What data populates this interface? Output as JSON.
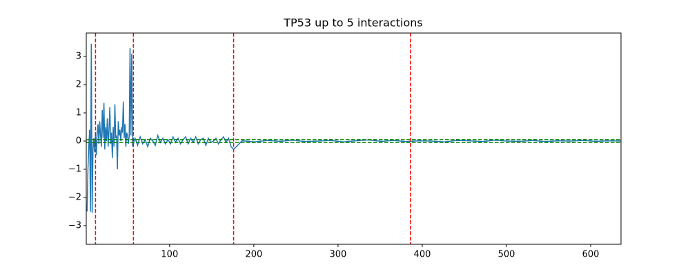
{
  "chart_data": {
    "type": "line",
    "title": "TP53 up to 5 interactions",
    "x": [
      2,
      3,
      4,
      5,
      6,
      7,
      8,
      9,
      10,
      11,
      12,
      13,
      14,
      15,
      16,
      17,
      18,
      19,
      20,
      21,
      22,
      23,
      24,
      25,
      26,
      27,
      28,
      29,
      30,
      31,
      32,
      33,
      34,
      35,
      36,
      37,
      38,
      39,
      40,
      41,
      42,
      43,
      44,
      45,
      46,
      47,
      48,
      49,
      50,
      51,
      52,
      53,
      54,
      55,
      56,
      59,
      62,
      65,
      68,
      71,
      74,
      77,
      80,
      83,
      86,
      89,
      92,
      95,
      98,
      101,
      104,
      107,
      110,
      113,
      116,
      119,
      122,
      125,
      128,
      131,
      134,
      137,
      140,
      143,
      146,
      149,
      152,
      155,
      158,
      161,
      164,
      167,
      170,
      173,
      176,
      186,
      201,
      216,
      231,
      246,
      261,
      276,
      291,
      306,
      321,
      336,
      351,
      366,
      381,
      396,
      411,
      426,
      441,
      456,
      471,
      486,
      501,
      516,
      531,
      546,
      561,
      576,
      591,
      606,
      621,
      636
    ],
    "series": [
      {
        "color": "#1f77b4",
        "values": [
          -2.5,
          -1.0,
          -0.2,
          0.4,
          -2.5,
          3.45,
          -2.55,
          -0.3,
          0.1,
          -0.4,
          0.3,
          -0.5,
          0.25,
          0.6,
          -0.1,
          0.7,
          0.2,
          -0.2,
          1.1,
          0.1,
          1.35,
          -0.3,
          0.5,
          0.0,
          0.8,
          -0.2,
          0.4,
          1.2,
          -0.1,
          0.3,
          -0.6,
          0.5,
          -0.2,
          1.3,
          0.1,
          0.2,
          -1.0,
          0.7,
          0.2,
          0.4,
          0.0,
          0.5,
          0.3,
          1.4,
          0.1,
          0.6,
          -0.2,
          0.3,
          0.2,
          -0.1,
          0.15,
          3.3,
          0.2,
          3.1,
          -0.2,
          0.1,
          -0.15,
          0.15,
          -0.1,
          0.05,
          -0.2,
          0.1,
          0.0,
          -0.15,
          0.2,
          -0.05,
          0.1,
          -0.1,
          0.05,
          -0.1,
          0.15,
          -0.05,
          0.1,
          -0.1,
          0.05,
          0.15,
          -0.1,
          0.1,
          -0.05,
          0.15,
          -0.1,
          0.05,
          0.1,
          -0.15,
          0.1,
          -0.05,
          0.0,
          0.1,
          -0.1,
          0.05,
          0.15,
          -0.05,
          0.1,
          -0.2,
          -0.3,
          0.01,
          -0.03,
          0.02,
          -0.01,
          0.03,
          -0.02,
          0.0,
          0.02,
          -0.03,
          0.01,
          0.04,
          -0.01,
          0.02,
          -0.02,
          0.01,
          0.0,
          -0.03,
          0.02,
          0.01,
          -0.02,
          0.03,
          0.0,
          -0.01,
          0.02,
          -0.02,
          0.01,
          0.0,
          0.02,
          -0.01,
          0.01,
          0.0
        ]
      }
    ],
    "vlines": [
      12,
      57,
      176,
      386
    ],
    "vline_color": "red",
    "hlines": [
      0.05,
      -0.05
    ],
    "hline_color": "green",
    "xlim": [
      1,
      636
    ],
    "ylim": [
      -3.66,
      3.83
    ],
    "xticks": [
      100,
      200,
      300,
      400,
      500,
      600
    ],
    "yticks": [
      -3,
      -2,
      -1,
      0,
      1,
      2,
      3
    ]
  }
}
